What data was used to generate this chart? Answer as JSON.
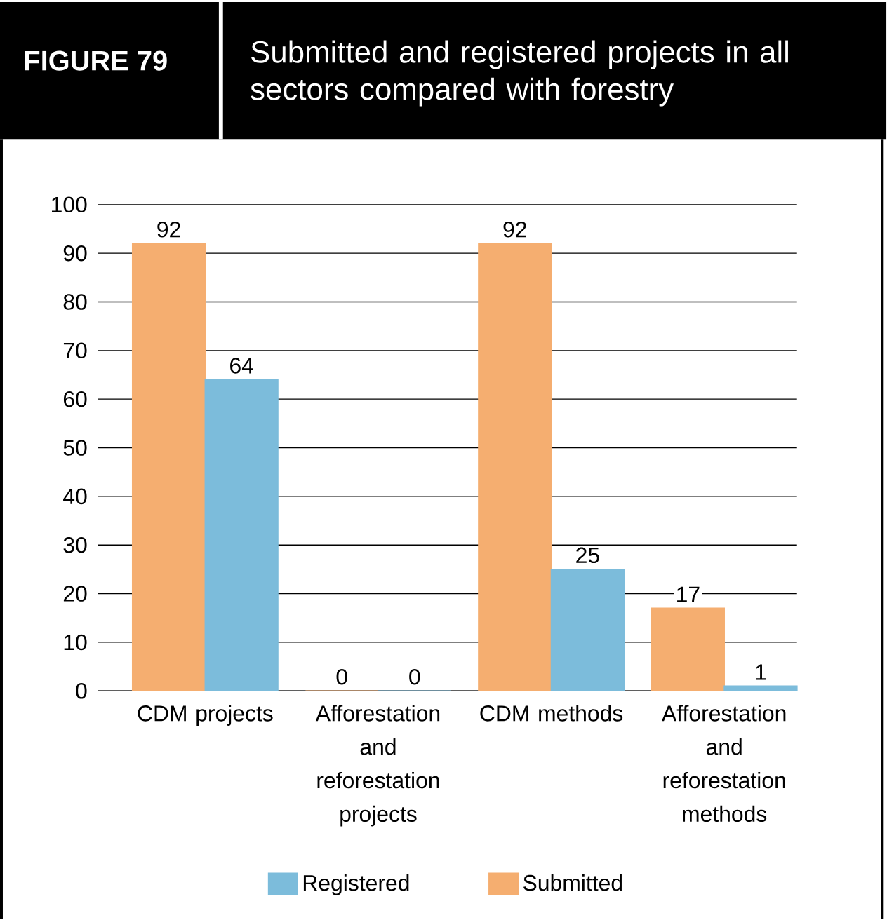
{
  "chart_data": {
    "type": "bar",
    "title": "Submitted and registered projects in all sectors compared with forestry",
    "annotations": [
      "FIGURE 79"
    ],
    "categories": [
      "CDM projects",
      "Afforestation and reforestation projects",
      "CDM methods",
      "Afforestation and reforestation methods"
    ],
    "series": [
      {
        "name": "Submitted",
        "color": "#f5ae70",
        "values": [
          92,
          0,
          92,
          17
        ]
      },
      {
        "name": "Registered",
        "color": "#7cbcdb",
        "values": [
          64,
          0,
          25,
          1
        ]
      }
    ],
    "ylim": [
      0,
      100
    ],
    "yticks": [
      0,
      10,
      20,
      30,
      40,
      50,
      60,
      70,
      80,
      90,
      100
    ],
    "grid": "y",
    "legend": "bottom",
    "data_labels": true
  }
}
